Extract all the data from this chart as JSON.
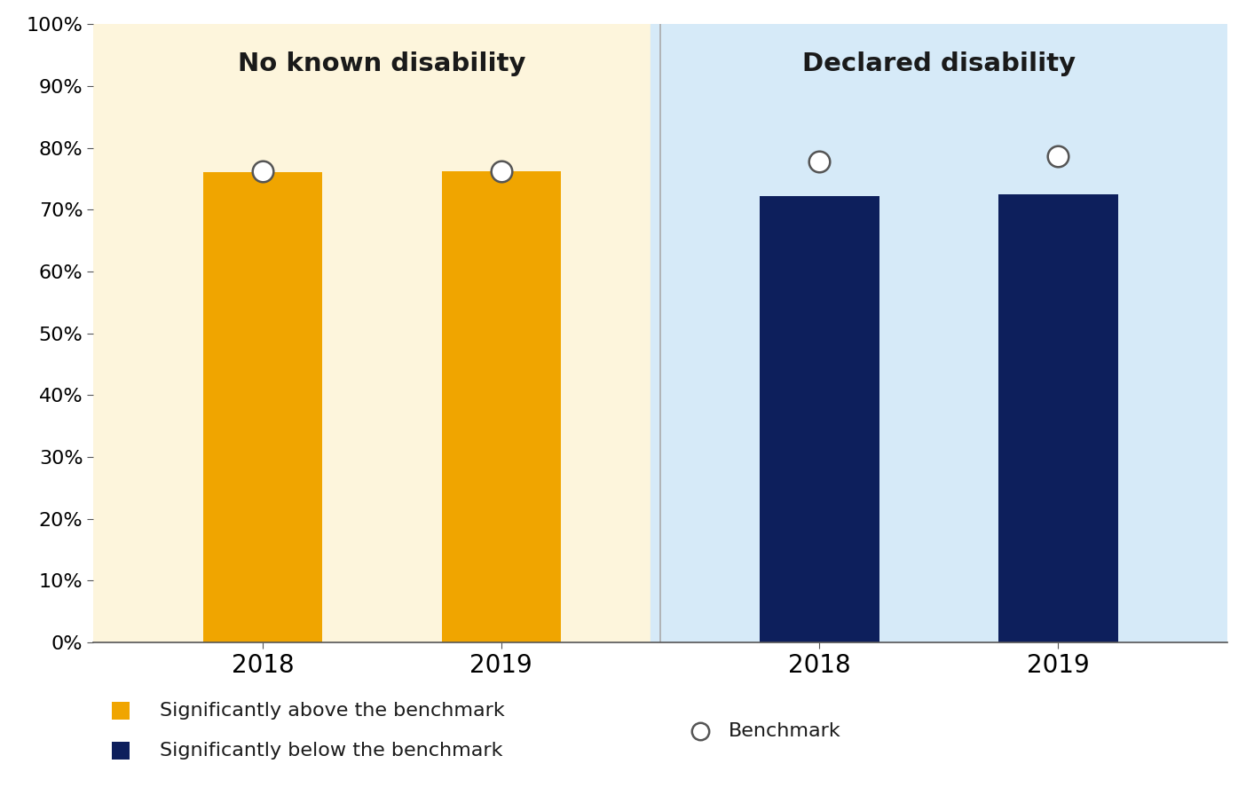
{
  "groups": [
    {
      "label": "No known disability",
      "bg_color": "#fdf5dc",
      "bar_color": "#f0a500",
      "bars": [
        {
          "year": "2018",
          "value": 0.76,
          "benchmark": 0.762
        },
        {
          "year": "2019",
          "value": 0.762,
          "benchmark": 0.762
        }
      ]
    },
    {
      "label": "Declared disability",
      "bg_color": "#d6eaf8",
      "bar_color": "#0d1f5c",
      "bars": [
        {
          "year": "2018",
          "value": 0.722,
          "benchmark": 0.778
        },
        {
          "year": "2019",
          "value": 0.724,
          "benchmark": 0.786
        }
      ]
    }
  ],
  "ylim": [
    0,
    1.0
  ],
  "yticks": [
    0.0,
    0.1,
    0.2,
    0.3,
    0.4,
    0.5,
    0.6,
    0.7,
    0.8,
    0.9,
    1.0
  ],
  "ytick_labels": [
    "0%",
    "10%",
    "20%",
    "30%",
    "40%",
    "50%",
    "60%",
    "70%",
    "80%",
    "90%",
    "100%"
  ],
  "legend_above_label": "Significantly above the benchmark",
  "legend_above_color": "#f0a500",
  "legend_below_label": "Significantly below the benchmark",
  "legend_below_color": "#0d1f5c",
  "legend_benchmark_label": "Benchmark",
  "bar_width": 0.6
}
